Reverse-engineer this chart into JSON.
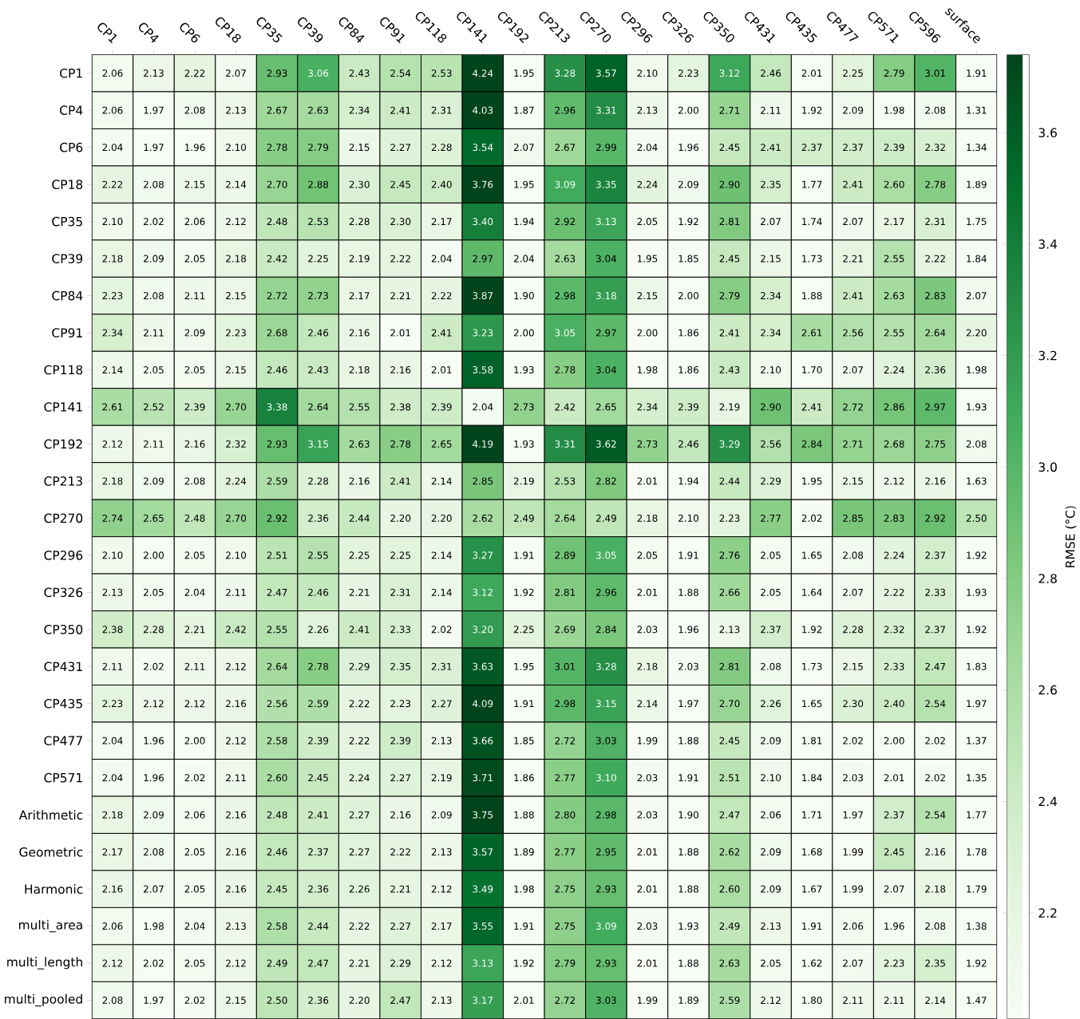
{
  "chart_data": {
    "type": "heatmap",
    "clabel": "RMSE (°C)",
    "categories": [
      "CP1",
      "CP4",
      "CP6",
      "CP18",
      "CP35",
      "CP39",
      "CP84",
      "CP91",
      "CP118",
      "CP141",
      "CP192",
      "CP213",
      "CP270",
      "CP296",
      "CP326",
      "CP350",
      "CP431",
      "CP435",
      "CP477",
      "CP571",
      "CP596",
      "surface"
    ],
    "y_categories": [
      "CP1",
      "CP4",
      "CP6",
      "CP18",
      "CP35",
      "CP39",
      "CP84",
      "CP91",
      "CP118",
      "CP141",
      "CP192",
      "CP213",
      "CP270",
      "CP296",
      "CP326",
      "CP350",
      "CP431",
      "CP435",
      "CP477",
      "CP571",
      "Arithmetic",
      "Geometric",
      "Harmonic",
      "multi_area",
      "multi_length",
      "multi_pooled"
    ],
    "cells": [
      [
        2.06,
        2.13,
        2.22,
        2.07,
        2.93,
        3.06,
        2.43,
        2.54,
        2.53,
        4.24,
        1.95,
        3.28,
        3.57,
        2.1,
        2.23,
        3.12,
        2.46,
        2.01,
        2.25,
        2.79,
        3.01,
        1.91
      ],
      [
        2.06,
        1.97,
        2.08,
        2.13,
        2.67,
        2.63,
        2.34,
        2.41,
        2.31,
        4.03,
        1.87,
        2.96,
        3.31,
        2.13,
        2.0,
        2.71,
        2.11,
        1.92,
        2.09,
        1.98,
        2.08,
        1.31
      ],
      [
        2.04,
        1.97,
        1.96,
        2.1,
        2.78,
        2.79,
        2.15,
        2.27,
        2.28,
        3.54,
        2.07,
        2.67,
        2.99,
        2.04,
        1.96,
        2.45,
        2.41,
        2.37,
        2.37,
        2.39,
        2.32,
        1.34
      ],
      [
        2.22,
        2.08,
        2.15,
        2.14,
        2.7,
        2.88,
        2.3,
        2.45,
        2.4,
        3.76,
        1.95,
        3.09,
        3.35,
        2.24,
        2.09,
        2.9,
        2.35,
        1.77,
        2.41,
        2.6,
        2.78,
        1.89
      ],
      [
        2.1,
        2.02,
        2.06,
        2.12,
        2.48,
        2.53,
        2.28,
        2.3,
        2.17,
        3.4,
        1.94,
        2.92,
        3.13,
        2.05,
        1.92,
        2.81,
        2.07,
        1.74,
        2.07,
        2.17,
        2.31,
        1.75
      ],
      [
        2.18,
        2.09,
        2.05,
        2.18,
        2.42,
        2.25,
        2.19,
        2.22,
        2.04,
        2.97,
        2.04,
        2.63,
        3.04,
        1.95,
        1.85,
        2.45,
        2.15,
        1.73,
        2.21,
        2.55,
        2.22,
        1.84
      ],
      [
        2.23,
        2.08,
        2.11,
        2.15,
        2.72,
        2.73,
        2.17,
        2.21,
        2.22,
        3.87,
        1.9,
        2.98,
        3.18,
        2.15,
        2.0,
        2.79,
        2.34,
        1.88,
        2.41,
        2.63,
        2.83,
        2.07
      ],
      [
        2.34,
        2.11,
        2.09,
        2.23,
        2.68,
        2.46,
        2.16,
        2.01,
        2.41,
        3.23,
        2.0,
        3.05,
        2.97,
        2.0,
        1.86,
        2.41,
        2.34,
        2.61,
        2.56,
        2.55,
        2.64,
        2.2
      ],
      [
        2.14,
        2.05,
        2.05,
        2.15,
        2.46,
        2.43,
        2.18,
        2.16,
        2.01,
        3.58,
        1.93,
        2.78,
        3.04,
        1.98,
        1.86,
        2.43,
        2.1,
        1.7,
        2.07,
        2.24,
        2.36,
        1.98
      ],
      [
        2.61,
        2.52,
        2.39,
        2.7,
        3.38,
        2.64,
        2.55,
        2.38,
        2.39,
        2.04,
        2.73,
        2.42,
        2.65,
        2.34,
        2.39,
        2.19,
        2.9,
        2.41,
        2.72,
        2.86,
        2.97,
        1.93
      ],
      [
        2.12,
        2.11,
        2.16,
        2.32,
        2.93,
        3.15,
        2.63,
        2.78,
        2.65,
        4.19,
        1.93,
        3.31,
        3.62,
        2.73,
        2.46,
        3.29,
        2.56,
        2.84,
        2.71,
        2.68,
        2.75,
        2.08
      ],
      [
        2.18,
        2.09,
        2.08,
        2.24,
        2.59,
        2.28,
        2.16,
        2.41,
        2.14,
        2.85,
        2.19,
        2.53,
        2.82,
        2.01,
        1.94,
        2.44,
        2.29,
        1.95,
        2.15,
        2.12,
        2.16,
        1.63
      ],
      [
        2.74,
        2.65,
        2.48,
        2.7,
        2.92,
        2.36,
        2.44,
        2.2,
        2.2,
        2.62,
        2.49,
        2.64,
        2.49,
        2.18,
        2.1,
        2.23,
        2.77,
        2.02,
        2.85,
        2.83,
        2.92,
        2.5
      ],
      [
        2.1,
        2.0,
        2.05,
        2.1,
        2.51,
        2.55,
        2.25,
        2.25,
        2.14,
        3.27,
        1.91,
        2.89,
        3.05,
        2.05,
        1.91,
        2.76,
        2.05,
        1.65,
        2.08,
        2.24,
        2.37,
        1.92
      ],
      [
        2.13,
        2.05,
        2.04,
        2.11,
        2.47,
        2.46,
        2.21,
        2.31,
        2.14,
        3.12,
        1.92,
        2.81,
        2.96,
        2.01,
        1.88,
        2.66,
        2.05,
        1.64,
        2.07,
        2.22,
        2.33,
        1.93
      ],
      [
        2.38,
        2.28,
        2.21,
        2.42,
        2.55,
        2.26,
        2.41,
        2.33,
        2.02,
        3.2,
        2.25,
        2.69,
        2.84,
        2.03,
        1.96,
        2.13,
        2.37,
        1.92,
        2.28,
        2.32,
        2.37,
        1.92
      ],
      [
        2.11,
        2.02,
        2.11,
        2.12,
        2.64,
        2.78,
        2.29,
        2.35,
        2.31,
        3.63,
        1.95,
        3.01,
        3.28,
        2.18,
        2.03,
        2.81,
        2.08,
        1.73,
        2.15,
        2.33,
        2.47,
        1.83
      ],
      [
        2.23,
        2.12,
        2.12,
        2.16,
        2.56,
        2.59,
        2.22,
        2.23,
        2.27,
        4.09,
        1.91,
        2.98,
        3.15,
        2.14,
        1.97,
        2.7,
        2.26,
        1.65,
        2.3,
        2.4,
        2.54,
        1.97
      ],
      [
        2.04,
        1.96,
        2.0,
        2.12,
        2.58,
        2.39,
        2.22,
        2.39,
        2.13,
        3.66,
        1.85,
        2.72,
        3.03,
        1.99,
        1.88,
        2.45,
        2.09,
        1.81,
        2.02,
        2.0,
        2.02,
        1.37
      ],
      [
        2.04,
        1.96,
        2.02,
        2.11,
        2.6,
        2.45,
        2.24,
        2.27,
        2.19,
        3.71,
        1.86,
        2.77,
        3.1,
        2.03,
        1.91,
        2.51,
        2.1,
        1.84,
        2.03,
        2.01,
        2.02,
        1.35
      ],
      [
        2.18,
        2.09,
        2.06,
        2.16,
        2.48,
        2.41,
        2.27,
        2.16,
        2.09,
        3.75,
        1.88,
        2.8,
        2.98,
        2.03,
        1.9,
        2.47,
        2.06,
        1.71,
        1.97,
        2.37,
        2.54,
        1.77
      ],
      [
        2.17,
        2.08,
        2.05,
        2.16,
        2.46,
        2.37,
        2.27,
        2.22,
        2.13,
        3.57,
        1.89,
        2.77,
        2.95,
        2.01,
        1.88,
        2.62,
        2.09,
        1.68,
        1.99,
        2.45,
        2.16,
        1.78
      ],
      [
        2.16,
        2.07,
        2.05,
        2.16,
        2.45,
        2.36,
        2.26,
        2.21,
        2.12,
        3.49,
        1.98,
        2.75,
        2.93,
        2.01,
        1.88,
        2.6,
        2.09,
        1.67,
        1.99,
        2.07,
        2.18,
        1.79
      ],
      [
        2.06,
        1.98,
        2.04,
        2.13,
        2.58,
        2.44,
        2.22,
        2.27,
        2.17,
        3.55,
        1.91,
        2.75,
        3.09,
        2.03,
        1.93,
        2.49,
        2.13,
        1.91,
        2.06,
        1.96,
        2.08,
        1.38
      ],
      [
        2.12,
        2.02,
        2.05,
        2.12,
        2.49,
        2.47,
        2.21,
        2.29,
        2.12,
        3.13,
        1.92,
        2.79,
        2.93,
        2.01,
        1.88,
        2.63,
        2.05,
        1.62,
        2.07,
        2.23,
        2.35,
        1.92
      ],
      [
        2.08,
        1.97,
        2.02,
        2.15,
        2.5,
        2.36,
        2.2,
        2.47,
        2.13,
        3.17,
        2.01,
        2.72,
        3.03,
        1.99,
        1.89,
        2.59,
        2.12,
        1.8,
        2.11,
        2.11,
        2.14,
        1.47
      ]
    ],
    "cell_labels": [
      [
        "2.06",
        "2.13",
        "2.22",
        "2.07",
        "2.93",
        "3.06",
        "2.43",
        "2.54",
        "2.53",
        "4.24",
        "1.95",
        "3.28",
        "3.57",
        "2.10",
        "2.23",
        "3.12",
        "2.46",
        "2.01",
        "2.25",
        "2.79",
        "3.01",
        "1.91"
      ],
      [
        "2.06",
        "1.97",
        "2.08",
        "2.13",
        "2.67",
        "2.63",
        "2.34",
        "2.41",
        "2.31",
        "4.03",
        "1.87",
        "2.96",
        "3.31",
        "2.13",
        "2.00",
        "2.71",
        "2.11",
        "1.92",
        "2.09",
        "1.98",
        "2.08",
        "1.31"
      ],
      [
        "2.04",
        "1.97",
        "1.96",
        "2.10",
        "2.78",
        "2.79",
        "2.15",
        "2.27",
        "2.28",
        "3.54",
        "2.07",
        "2.67",
        "2.99",
        "2.04",
        "1.96",
        "2.45",
        "2.41",
        "2.37",
        "2.37",
        "2.39",
        "2.32",
        "1.34"
      ],
      [
        "2.22",
        "2.08",
        "2.15",
        "2.14",
        "2.70",
        "2.88",
        "2.30",
        "2.45",
        "2.40",
        "3.76",
        "1.95",
        "3.09",
        "3.35",
        "2.24",
        "2.09",
        "2.90",
        "2.35",
        "1.77",
        "2.41",
        "2.60",
        "2.78",
        "1.89"
      ],
      [
        "2.10",
        "2.02",
        "2.06",
        "2.12",
        "2.48",
        "2.53",
        "2.28",
        "2.30",
        "2.17",
        "3.40",
        "1.94",
        "2.92",
        "3.13",
        "2.05",
        "1.92",
        "2.81",
        "2.07",
        "1.74",
        "2.07",
        "2.17",
        "2.31",
        "1.75"
      ],
      [
        "2.18",
        "2.09",
        "2.05",
        "2.18",
        "2.42",
        "2.25",
        "2.19",
        "2.22",
        "2.04",
        "2.97",
        "2.04",
        "2.63",
        "3.04",
        "1.95",
        "1.85",
        "2.45",
        "2.15",
        "1.73",
        "2.21",
        "2.55",
        "2.22",
        "1.84"
      ],
      [
        "2.23",
        "2.08",
        "2.11",
        "2.15",
        "2.72",
        "2.73",
        "2.17",
        "2.21",
        "2.22",
        "3.87",
        "1.90",
        "2.98",
        "3.18",
        "2.15",
        "2.00",
        "2.79",
        "2.34",
        "1.88",
        "2.41",
        "2.63",
        "2.83",
        "2.07"
      ],
      [
        "2.34",
        "2.11",
        "2.09",
        "2.23",
        "2.68",
        "2.46",
        "2.16",
        "2.01",
        "2.41",
        "3.23",
        "2.00",
        "3.05",
        "2.97",
        "2.00",
        "1.86",
        "2.41",
        "2.34",
        "2.61",
        "2.56",
        "2.55",
        "2.64",
        "2.20"
      ],
      [
        "2.14",
        "2.05",
        "2.05",
        "2.15",
        "2.46",
        "2.43",
        "2.18",
        "2.16",
        "2.01",
        "3.58",
        "1.93",
        "2.78",
        "3.04",
        "1.98",
        "1.86",
        "2.43",
        "2.10",
        "1.70",
        "2.07",
        "2.24",
        "2.36",
        "1.98"
      ],
      [
        "2.61",
        "2.52",
        "2.39",
        "2.70",
        "3.38",
        "2.64",
        "2.55",
        "2.38",
        "2.39",
        "2.04",
        "2.73",
        "2.42",
        "2.65",
        "2.34",
        "2.39",
        "2.19",
        "2.90",
        "2.41",
        "2.72",
        "2.86",
        "2.97",
        "1.93"
      ],
      [
        "2.12",
        "2.11",
        "2.16",
        "2.32",
        "2.93",
        "3.15",
        "2.63",
        "2.78",
        "2.65",
        "4.19",
        "1.93",
        "3.31",
        "3.62",
        "2.73",
        "2.46",
        "3.29",
        "2.56",
        "2.84",
        "2.71",
        "2.68",
        "2.75",
        "2.08"
      ],
      [
        "2.18",
        "2.09",
        "2.08",
        "2.24",
        "2.59",
        "2.28",
        "2.16",
        "2.41",
        "2.14",
        "2.85",
        "2.19",
        "2.53",
        "2.82",
        "2.01",
        "1.94",
        "2.44",
        "2.29",
        "1.95",
        "2.15",
        "2.12",
        "2.16",
        "1.63"
      ],
      [
        "2.74",
        "2.65",
        "2.48",
        "2.70",
        "2.92",
        "2.36",
        "2.44",
        "2.20",
        "2.20",
        "2.62",
        "2.49",
        "2.64",
        "2.49",
        "2.18",
        "2.10",
        "2.23",
        "2.77",
        "2.02",
        "2.85",
        "2.83",
        "2.92",
        "2.50"
      ],
      [
        "2.10",
        "2.00",
        "2.05",
        "2.10",
        "2.51",
        "2.55",
        "2.25",
        "2.25",
        "2.14",
        "3.27",
        "1.91",
        "2.89",
        "3.05",
        "2.05",
        "1.91",
        "2.76",
        "2.05",
        "1.65",
        "2.08",
        "2.24",
        "2.37",
        "1.92"
      ],
      [
        "2.13",
        "2.05",
        "2.04",
        "2.11",
        "2.47",
        "2.46",
        "2.21",
        "2.31",
        "2.14",
        "3.12",
        "1.92",
        "2.81",
        "2.96",
        "2.01",
        "1.88",
        "2.66",
        "2.05",
        "1.64",
        "2.07",
        "2.22",
        "2.33",
        "1.93"
      ],
      [
        "2.38",
        "2.28",
        "2.21",
        "2.42",
        "2.55",
        "2.26",
        "2.41",
        "2.33",
        "2.02",
        "3.20",
        "2.25",
        "2.69",
        "2.84",
        "2.03",
        "1.96",
        "2.13",
        "2.37",
        "1.92",
        "2.28",
        "2.32",
        "2.37",
        "1.92"
      ],
      [
        "2.11",
        "2.02",
        "2.11",
        "2.12",
        "2.64",
        "2.78",
        "2.29",
        "2.35",
        "2.31",
        "3.63",
        "1.95",
        "3.01",
        "3.28",
        "2.18",
        "2.03",
        "2.81",
        "2.08",
        "1.73",
        "2.15",
        "2.33",
        "2.47",
        "1.83"
      ],
      [
        "2.23",
        "2.12",
        "2.12",
        "2.16",
        "2.56",
        "2.59",
        "2.22",
        "2.23",
        "2.27",
        "4.09",
        "1.91",
        "2.98",
        "3.15",
        "2.14",
        "1.97",
        "2.70",
        "2.26",
        "1.65",
        "2.30",
        "2.40",
        "2.54",
        "1.97"
      ],
      [
        "2.04",
        "1.96",
        "2.00",
        "2.12",
        "2.58",
        "2.39",
        "2.22",
        "2.39",
        "2.13",
        "3.66",
        "1.85",
        "2.72",
        "3.03",
        "1.99",
        "1.88",
        "2.45",
        "2.09",
        "1.81",
        "2.02",
        "2.00",
        "2.02",
        "1.37"
      ],
      [
        "2.04",
        "1.96",
        "2.02",
        "2.11",
        "2.60",
        "2.45",
        "2.24",
        "2.27",
        "2.19",
        "3.71",
        "1.86",
        "2.77",
        "3.10",
        "2.03",
        "1.91",
        "2.51",
        "2.10",
        "1.84",
        "2.03",
        "2.01",
        "2.02",
        "1.35"
      ],
      [
        "2.18",
        "2.09",
        "2.06",
        "2.16",
        "2.48",
        "2.41",
        "2.27",
        "2.16",
        "2.09",
        "3.75",
        "1.88",
        "2.80",
        "2.98",
        "2.03",
        "1.90",
        "2.47",
        "2.06",
        "1.71",
        "1.97",
        "2.37",
        "2.54",
        "1.77"
      ],
      [
        "2.17",
        "2.08",
        "2.05",
        "2.16",
        "2.46",
        "2.37",
        "2.27",
        "2.22",
        "2.13",
        "3.57",
        "1.89",
        "2.77",
        "2.95",
        "2.01",
        "1.88",
        "2.62",
        "2.09",
        "1.68",
        "1.99",
        "2.45",
        "2.16",
        "1.78"
      ],
      [
        "2.16",
        "2.07",
        "2.05",
        "2.16",
        "2.45",
        "2.36",
        "2.26",
        "2.21",
        "2.12",
        "3.49",
        "1.98",
        "2.75",
        "2.93",
        "2.01",
        "1.88",
        "2.60",
        "2.09",
        "1.67",
        "1.99",
        "2.07",
        "2.18",
        "1.79"
      ],
      [
        "2.06",
        "1.98",
        "2.04",
        "2.13",
        "2.58",
        "2.44",
        "2.22",
        "2.27",
        "2.17",
        "3.55",
        "1.91",
        "2.75",
        "3.09",
        "2.03",
        "1.93",
        "2.49",
        "2.13",
        "1.91",
        "2.06",
        "1.96",
        "2.08",
        "1.38"
      ],
      [
        "2.12",
        "2.02",
        "2.05",
        "2.12",
        "2.49",
        "2.47",
        "2.21",
        "2.29",
        "2.12",
        "3.13",
        "1.92",
        "2.79",
        "2.93",
        "2.01",
        "1.88",
        "2.63",
        "2.05",
        "1.62",
        "2.07",
        "2.23",
        "2.35",
        "1.92"
      ],
      [
        "2.08",
        "1.97",
        "2.02",
        "2.15",
        "2.50",
        "2.36",
        "2.20",
        "2.47",
        "2.13",
        "3.17",
        "2.01",
        "2.72",
        "3.03",
        "1.99",
        "1.89",
        "2.59",
        "2.12",
        "1.80",
        "2.11",
        "2.11",
        "2.14",
        "1.47"
      ]
    ],
    "clim": [
      2.01,
      3.74
    ],
    "cticks": [
      2.2,
      2.4,
      2.6,
      2.8,
      {
        "value": 3,
        "label": "3.0"
      },
      3.2,
      3.4,
      3.6
    ]
  }
}
